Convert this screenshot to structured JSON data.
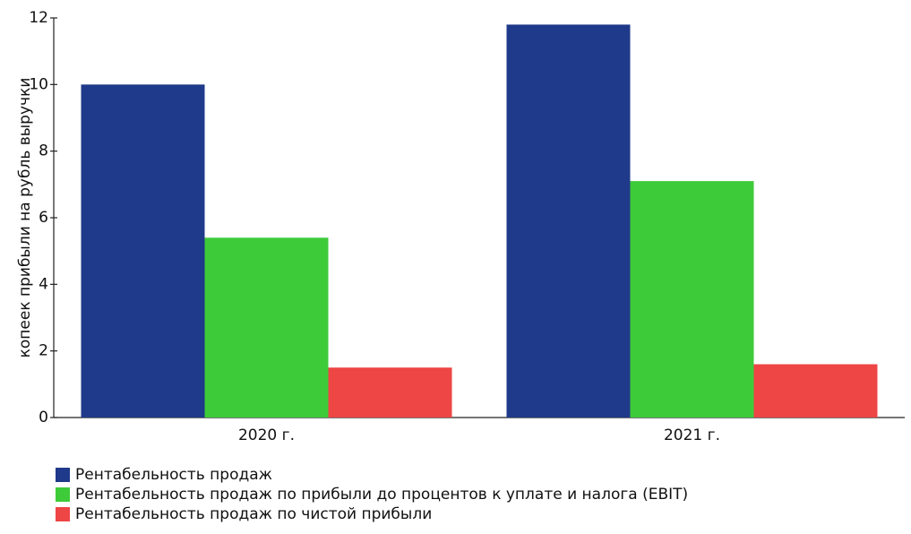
{
  "chart_data": {
    "type": "bar",
    "y_label": "копеек прибыли на рубль выручки",
    "categories": [
      "2020 г.",
      "2021 г."
    ],
    "series": [
      {
        "name": "Рентабельность продаж",
        "color": "#1f3a8a",
        "values": [
          10.0,
          11.8
        ]
      },
      {
        "name": "Рентабельность продаж по прибыли до процентов к уплате и налога (EBIT)",
        "color": "#3ecb3a",
        "values": [
          5.4,
          7.1
        ]
      },
      {
        "name": "Рентабельность продаж по чистой прибыли",
        "color": "#ee4545",
        "values": [
          1.5,
          1.6
        ]
      }
    ],
    "ylim": [
      0,
      12
    ],
    "yticks": [
      0,
      2,
      4,
      6,
      8,
      10,
      12
    ],
    "grid": false,
    "legend": "bottom-left"
  }
}
